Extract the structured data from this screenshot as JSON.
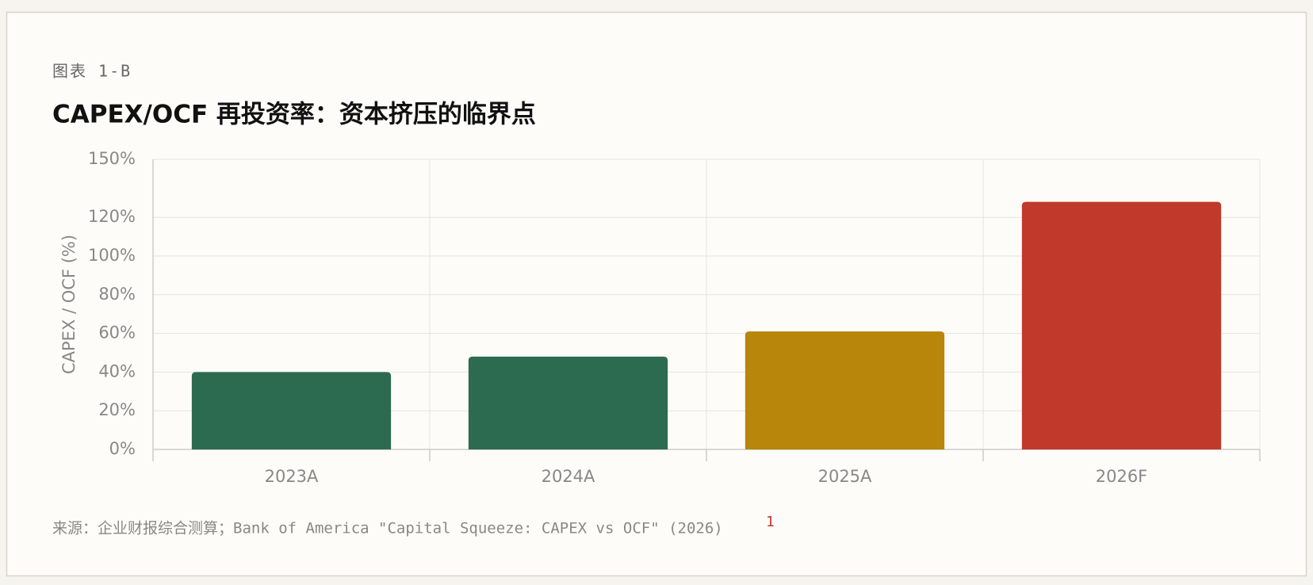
{
  "chart_data": {
    "type": "bar",
    "label": "图表 1-B",
    "title": "CAPEX/OCF 再投资率：资本挤压的临界点",
    "y_label": "CAPEX / OCF (%)",
    "categories": [
      "2023A",
      "2024A",
      "2025A",
      "2026F"
    ],
    "values": [
      40,
      48,
      61,
      128
    ],
    "colors": [
      "#2c6b50",
      "#2c6b50",
      "#b8860b",
      "#c0392b"
    ],
    "ylim": [
      0,
      150
    ],
    "yticks": [
      {
        "value": 0,
        "label": "0%"
      },
      {
        "value": 20,
        "label": "20%"
      },
      {
        "value": 40,
        "label": "40%"
      },
      {
        "value": 60,
        "label": "60%"
      },
      {
        "value": 80,
        "label": "80%"
      },
      {
        "value": 100,
        "label": "100%"
      },
      {
        "value": 120,
        "label": "120%"
      },
      {
        "value": 150,
        "label": "150%"
      }
    ],
    "grid": true,
    "source": "来源：企业财报综合测算；Bank of America \"Capital Squeeze: CAPEX vs OCF\" (2026)",
    "footnote": "1"
  }
}
